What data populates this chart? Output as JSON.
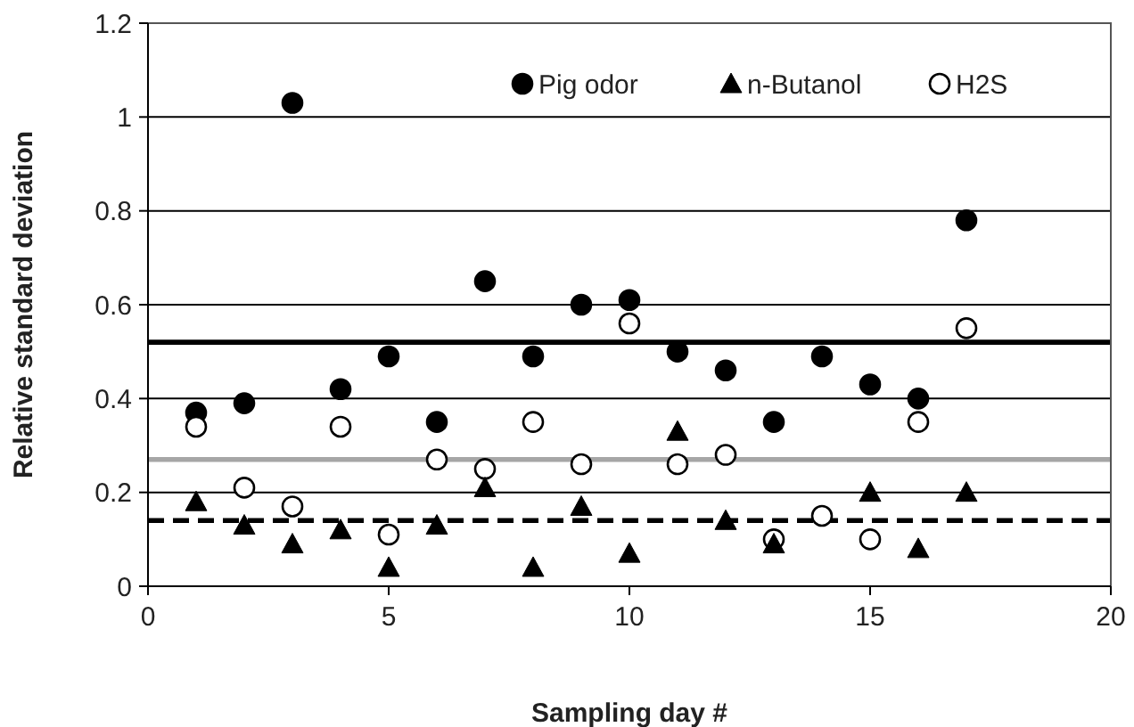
{
  "chart_data": {
    "type": "scatter",
    "xlabel": "Sampling day #",
    "ylabel": "Relative standard deviation",
    "x": [
      1,
      2,
      3,
      4,
      5,
      6,
      7,
      8,
      9,
      10,
      11,
      12,
      13,
      14,
      15,
      16,
      17
    ],
    "xlim": [
      0,
      20
    ],
    "xticks": [
      0,
      5,
      10,
      15,
      20
    ],
    "ylim": [
      0,
      1.2
    ],
    "yticks": [
      0,
      0.2,
      0.4,
      0.6,
      0.8,
      1,
      1.2
    ],
    "grid": "y",
    "legend": "top right",
    "series": [
      {
        "name": "Pig odor",
        "color": "#000000",
        "marker": "circle",
        "values": [
          0.37,
          0.39,
          1.03,
          0.42,
          0.49,
          0.35,
          0.65,
          0.49,
          0.6,
          0.61,
          0.5,
          0.46,
          0.35,
          0.49,
          0.43,
          0.4,
          0.78
        ]
      },
      {
        "name": "n-Butanol",
        "color": "#000000",
        "marker": "triangle",
        "values": [
          0.18,
          0.13,
          0.09,
          0.12,
          0.04,
          0.13,
          0.21,
          0.04,
          0.17,
          0.07,
          0.33,
          0.14,
          0.09,
          null,
          0.2,
          0.08,
          0.2
        ]
      },
      {
        "name": "H2S",
        "color": "#ffffff",
        "marker": "circle",
        "values": [
          0.34,
          0.21,
          0.17,
          0.34,
          0.11,
          0.27,
          0.25,
          0.35,
          0.26,
          0.56,
          0.26,
          0.28,
          0.1,
          0.15,
          0.1,
          0.35,
          0.55
        ]
      }
    ],
    "ref_lines": [
      {
        "axis": "y",
        "value": 0.52,
        "color": "#000000",
        "line_style": "solid"
      },
      {
        "axis": "y",
        "value": 0.27,
        "color": "#a6a6a6",
        "line_style": "solid"
      },
      {
        "axis": "y",
        "value": 0.14,
        "color": "#000000",
        "line_style": "dashed"
      }
    ]
  }
}
